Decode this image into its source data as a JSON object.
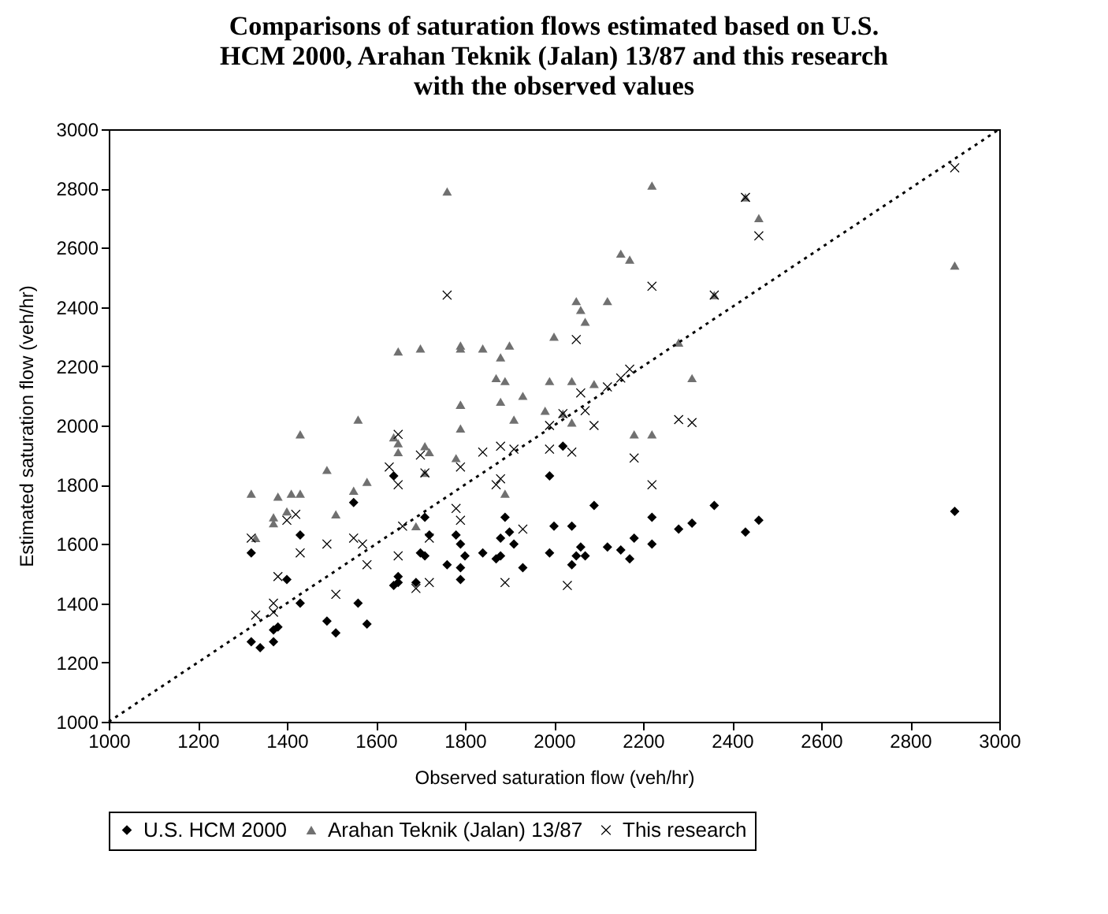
{
  "chart_data": {
    "type": "scatter",
    "title": "Comparisons of saturation flows estimated based on U.S. HCM 2000, Arahan Teknik (Jalan) 13/87 and this research with the observed values",
    "xlabel": "Observed saturation flow  (veh/hr)",
    "ylabel": "Estimated saturation flow (veh/hr)",
    "xlim": [
      1000,
      3000
    ],
    "ylim": [
      1000,
      3000
    ],
    "xticks": [
      1000,
      1200,
      1400,
      1600,
      1800,
      2000,
      2200,
      2400,
      2600,
      2800,
      3000
    ],
    "yticks": [
      1000,
      1200,
      1400,
      1600,
      1800,
      2000,
      2200,
      2400,
      2600,
      2800,
      3000
    ],
    "grid": false,
    "legend": "bottom",
    "series": [
      {
        "name": "U.S. HCM 2000",
        "color": "#000000",
        "marker": "diamond",
        "x": [
          1320,
          1430,
          1400,
          1430,
          1320,
          1340,
          1370,
          1370,
          1380,
          1490,
          1510,
          1550,
          1560,
          1580,
          1640,
          1650,
          1650,
          1640,
          1690,
          1700,
          1710,
          1710,
          1720,
          1760,
          1790,
          1790,
          1780,
          1790,
          1800,
          1840,
          1870,
          1880,
          1880,
          1890,
          1900,
          1910,
          1930,
          1990,
          1990,
          2000,
          2020,
          2040,
          2090,
          2040,
          2050,
          2060,
          2070,
          2120,
          2150,
          2170,
          2180,
          2220,
          2220,
          2280,
          2310,
          2360,
          2430,
          2460,
          2900
        ],
        "values": [
          1570,
          1630,
          1480,
          1400,
          1270,
          1250,
          1270,
          1310,
          1320,
          1340,
          1300,
          1740,
          1400,
          1330,
          1830,
          1490,
          1470,
          1460,
          1470,
          1570,
          1560,
          1690,
          1630,
          1530,
          1480,
          1520,
          1630,
          1600,
          1560,
          1570,
          1550,
          1560,
          1620,
          1690,
          1640,
          1600,
          1520,
          1830,
          1570,
          1660,
          1930,
          1660,
          1730,
          1530,
          1560,
          1590,
          1560,
          1590,
          1580,
          1550,
          1620,
          1600,
          1690,
          1650,
          1670,
          1730,
          1640,
          1680,
          1710
        ]
      },
      {
        "name": "Arahan Teknik (Jalan) 13/87",
        "color": "#707070",
        "marker": "triangle",
        "x": [
          1760,
          1650,
          1700,
          1790,
          1790,
          1840,
          1900,
          1880,
          2000,
          1870,
          1890,
          1990,
          1930,
          1790,
          1880,
          1980,
          2220,
          2430,
          2460,
          2150,
          2170,
          2900,
          2050,
          2060,
          2120,
          2070,
          2360,
          2280,
          2310,
          2040,
          2090,
          1320,
          1380,
          1410,
          1430,
          1370,
          1370,
          1400,
          1330,
          1430,
          1490,
          1510,
          1550,
          1560,
          1580,
          1640,
          1650,
          1650,
          1790,
          1790,
          1710,
          1720,
          1710,
          1780,
          1690,
          1910,
          1890,
          2020,
          2180,
          2220,
          2040
        ],
        "values": [
          2790,
          2250,
          2260,
          2270,
          2260,
          2260,
          2270,
          2230,
          2300,
          2160,
          2150,
          2150,
          2100,
          2070,
          2080,
          2050,
          2810,
          2770,
          2700,
          2580,
          2560,
          2540,
          2420,
          2390,
          2420,
          2350,
          2440,
          2280,
          2160,
          2150,
          2140,
          1770,
          1760,
          1770,
          1770,
          1690,
          1670,
          1710,
          1620,
          1970,
          1850,
          1700,
          1780,
          2020,
          1810,
          1960,
          1940,
          1910,
          2070,
          1990,
          1930,
          1910,
          1840,
          1890,
          1660,
          2020,
          1770,
          2040,
          1970,
          1970,
          2010
        ]
      },
      {
        "name": "This research",
        "color": "#000000",
        "marker": "cross",
        "x": [
          1760,
          2430,
          2460,
          2220,
          2900,
          2360,
          2050,
          2170,
          2150,
          2120,
          2060,
          2070,
          1320,
          1430,
          1400,
          1420,
          1380,
          1330,
          1370,
          1370,
          1490,
          1510,
          1550,
          1570,
          1580,
          1650,
          1650,
          1630,
          1650,
          1660,
          1690,
          1720,
          1700,
          1710,
          1720,
          1780,
          1790,
          1790,
          1840,
          1890,
          1880,
          1910,
          1880,
          1870,
          1930,
          1990,
          2020,
          1990,
          2030,
          2040,
          2180,
          2220,
          2280,
          2310,
          2090
        ],
        "values": [
          2440,
          2770,
          2640,
          2470,
          2870,
          2440,
          2290,
          2190,
          2160,
          2130,
          2110,
          2050,
          1620,
          1570,
          1680,
          1700,
          1490,
          1360,
          1400,
          1370,
          1600,
          1430,
          1620,
          1600,
          1530,
          1560,
          1970,
          1860,
          1800,
          1660,
          1450,
          1470,
          1900,
          1840,
          1620,
          1720,
          1680,
          1860,
          1910,
          1470,
          1930,
          1920,
          1820,
          1800,
          1650,
          2000,
          2040,
          1920,
          1460,
          1910,
          1890,
          1800,
          2020,
          2010,
          2000
        ]
      },
      {
        "type": "line",
        "color": "#000000",
        "line_style": "dotted",
        "marker": "none",
        "x": [
          1000,
          3000
        ],
        "values": [
          1000,
          3000
        ]
      }
    ]
  }
}
